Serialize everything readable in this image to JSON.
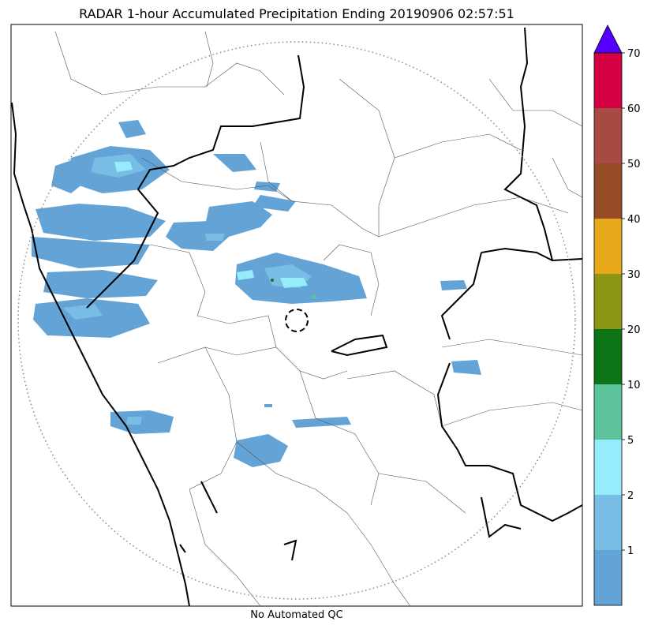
{
  "title": "RADAR 1-hour Accumulated Precipitation Ending 20190906 02:57:51",
  "footer": "No Automated QC",
  "colorbar": {
    "extend_max": true,
    "levels": [
      {
        "label": "1",
        "color": "#64a3d6"
      },
      {
        "label": "2",
        "color": "#78bde4"
      },
      {
        "label": "5",
        "color": "#96ecfb"
      },
      {
        "label": "10",
        "color": "#5cc39a"
      },
      {
        "label": "20",
        "color": "#0c7417"
      },
      {
        "label": "30",
        "color": "#8b9614"
      },
      {
        "label": "40",
        "color": "#e8a81b"
      },
      {
        "label": "50",
        "color": "#964c27"
      },
      {
        "label": "60",
        "color": "#a64a42"
      },
      {
        "label": "70",
        "color": "#d50044"
      }
    ],
    "extend_color": "#5500ff"
  },
  "map": {
    "range_ring": "dotted",
    "radar_site_marker": "dashed-circle"
  }
}
